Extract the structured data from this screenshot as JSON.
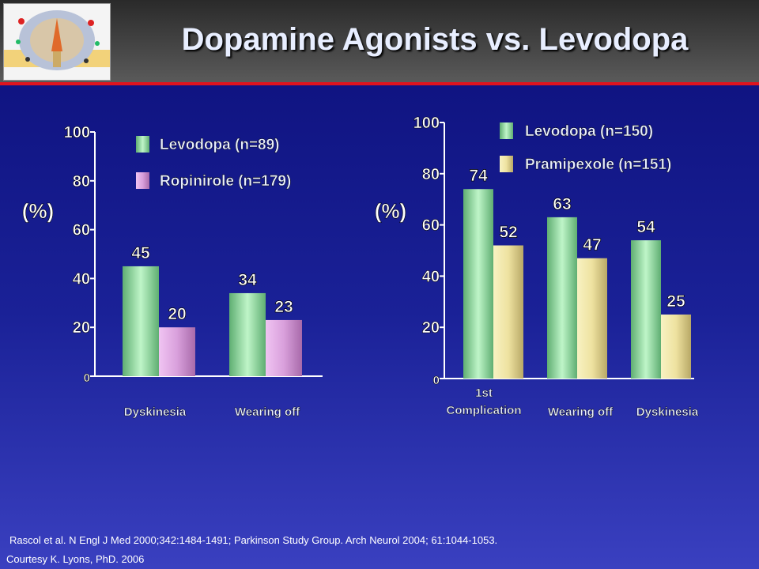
{
  "slide": {
    "title": "Dopamine Agonists vs. Levodopa",
    "footnote": "Rascol et al. N Engl J Med 2000;342:1484-1491; Parkinson Study Group. Arch Neurol 2004; 61:1044-1053.",
    "courtesy": "Courtesy K. Lyons, PhD. 2006"
  },
  "colors": {
    "levodopa": "#8fe2a0",
    "ropinirole": "#e0a8e4",
    "pramipexole": "#eee6a0",
    "tick_text": "#ffffff",
    "label_text": "#e8eeff"
  },
  "chart_data": [
    {
      "type": "bar",
      "ylabel": "(%)",
      "ylim": [
        0,
        100
      ],
      "yticks": [
        0,
        20,
        40,
        60,
        80,
        100
      ],
      "categories": [
        "Dyskinesia",
        "Wearing off"
      ],
      "series": [
        {
          "name": "Levodopa (n=89)",
          "values": [
            45,
            34
          ],
          "color_key": "levodopa"
        },
        {
          "name": "Ropinirole (n=179)",
          "values": [
            20,
            23
          ],
          "color_key": "ropinirole"
        }
      ],
      "legend": "top"
    },
    {
      "type": "bar",
      "ylabel": "(%)",
      "ylim": [
        0,
        100
      ],
      "yticks": [
        0,
        20,
        40,
        60,
        80,
        100
      ],
      "categories": [
        "1st Complication",
        "Wearing off",
        "Dyskinesia"
      ],
      "series": [
        {
          "name": "Levodopa (n=150)",
          "values": [
            74,
            63,
            54
          ],
          "color_key": "levodopa"
        },
        {
          "name": "Pramipexole (n=151)",
          "values": [
            52,
            47,
            25
          ],
          "color_key": "pramipexole"
        }
      ],
      "legend": "top"
    }
  ]
}
